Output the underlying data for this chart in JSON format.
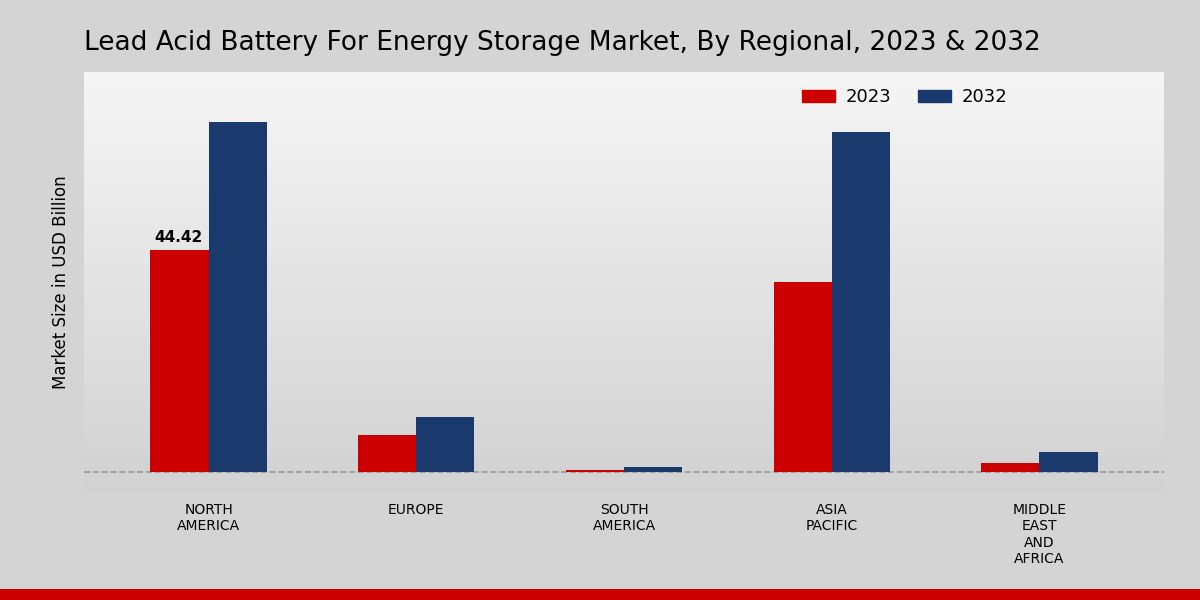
{
  "title": "Lead Acid Battery For Energy Storage Market, By Regional, 2023 & 2032",
  "ylabel": "Market Size in USD Billion",
  "categories": [
    "NORTH\nAMERICA",
    "EUROPE",
    "SOUTH\nAMERICA",
    "ASIA\nPACIFIC",
    "MIDDLE\nEAST\nAND\nAFRICA"
  ],
  "values_2023": [
    44.42,
    7.5,
    0.4,
    38.0,
    1.8
  ],
  "values_2032": [
    70.0,
    11.0,
    1.0,
    68.0,
    4.0
  ],
  "color_2023": "#cc0000",
  "color_2032": "#1a3a6e",
  "annotation_text": "44.42",
  "annotation_category_idx": 0,
  "legend_labels": [
    "2023",
    "2032"
  ],
  "bar_width": 0.28,
  "ylim_min": -4,
  "ylim_max": 80,
  "dashed_line_y": 0,
  "bg_color_light": "#f0f0f0",
  "bg_color_dark": "#d0d0d0",
  "title_fontsize": 19,
  "axis_label_fontsize": 12,
  "tick_fontsize": 10,
  "legend_fontsize": 13
}
